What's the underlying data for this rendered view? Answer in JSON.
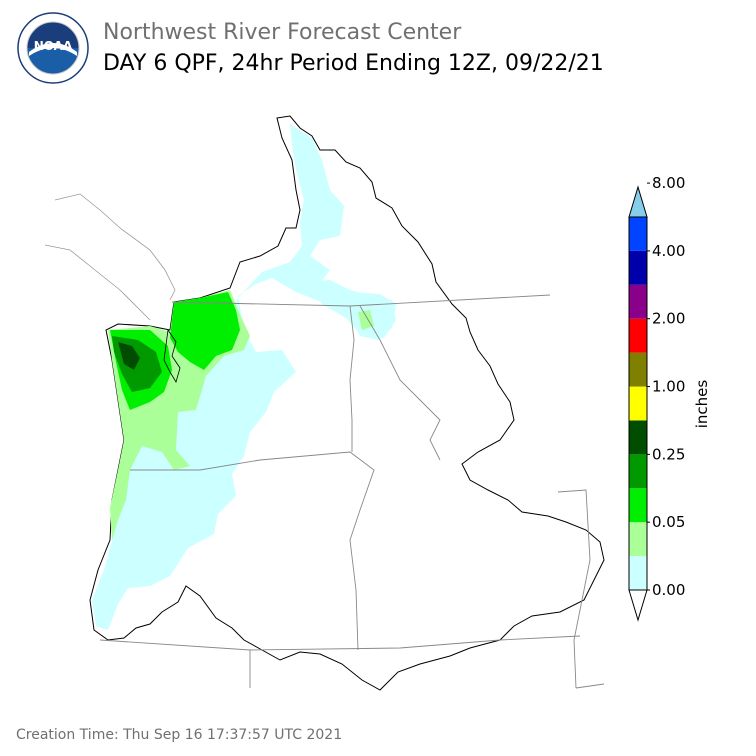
{
  "header": {
    "organization": "Northwest River Forecast Center",
    "title": "DAY 6 QPF, 24hr Period Ending 12Z, 09/22/21"
  },
  "logo": {
    "text": "NOAA",
    "ring_text": "NATIONAL OCEANIC AND ATMOSPHERIC ADMINISTRATION · U.S. DEPARTMENT OF COMMERCE"
  },
  "colorbar": {
    "unit": "inches",
    "tick_labels": [
      "0.00",
      "0.05",
      "0.25",
      "1.00",
      "2.00",
      "4.00",
      "8.00"
    ],
    "colors": [
      "#ffffff",
      "#ccffff",
      "#aaff99",
      "#00ee00",
      "#009900",
      "#004d00",
      "#ffff00",
      "#808000",
      "#ff0000",
      "#8b008b",
      "#0000aa",
      "#0044ff",
      "#87ceeb"
    ]
  },
  "footer": {
    "creation_time": "Creation Time: Thu Sep 16 17:37:57 UTC 2021"
  }
}
